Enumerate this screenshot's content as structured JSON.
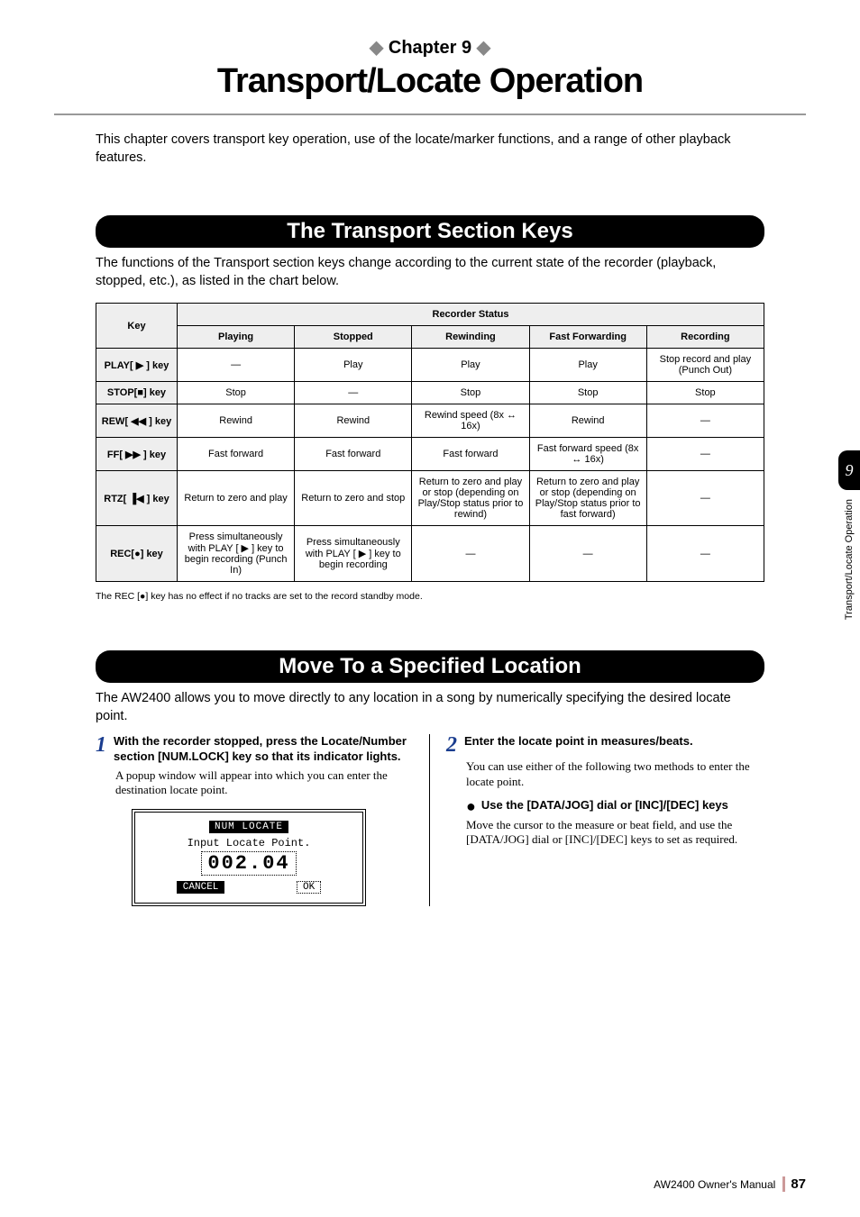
{
  "chapter": {
    "label": "Chapter 9",
    "title": "Transport/Locate Operation",
    "fontsize_small": 20,
    "fontsize_big": 38
  },
  "intro": "This chapter covers transport key operation, use of the locate/marker functions, and a range of other playback features.",
  "section1": {
    "title": "The Transport Section Keys",
    "fontsize": 24,
    "desc": "The functions of the Transport section keys change according to the current state of the recorder (playback, stopped, etc.), as listed in the chart below."
  },
  "table": {
    "group_header": "Recorder Status",
    "key_header": "Key",
    "columns": [
      "Playing",
      "Stopped",
      "Rewinding",
      "Fast Forwarding",
      "Recording"
    ],
    "rows": [
      {
        "key": "PLAY[ ▶ ] key",
        "cells": [
          "—",
          "Play",
          "Play",
          "Play",
          "Stop record and play (Punch Out)"
        ]
      },
      {
        "key": "STOP[■] key",
        "cells": [
          "Stop",
          "—",
          "Stop",
          "Stop",
          "Stop"
        ]
      },
      {
        "key": "REW[ ◀◀ ] key",
        "cells": [
          "Rewind",
          "Rewind",
          "Rewind speed\n(8x ↔ 16x)",
          "Rewind",
          "—"
        ]
      },
      {
        "key": "FF[ ▶▶ ] key",
        "cells": [
          "Fast forward",
          "Fast forward",
          "Fast forward",
          "Fast forward speed\n(8x ↔ 16x)",
          "—"
        ]
      },
      {
        "key": "RTZ[ ▐◀ ] key",
        "cells": [
          "Return to zero and play",
          "Return to zero and stop",
          "Return to zero and play or stop (depending on Play/Stop status prior to rewind)",
          "Return to zero and play or stop (depending on Play/Stop status prior to fast forward)",
          "—"
        ]
      },
      {
        "key": "REC[●] key",
        "cells": [
          "Press simultaneously with PLAY [ ▶ ] key to begin recording (Punch In)",
          "Press simultaneously with PLAY [ ▶ ] key to begin recording",
          "—",
          "—",
          "—"
        ]
      }
    ],
    "note": "The REC [●] key has no effect if no tracks are set to the record standby mode."
  },
  "section2": {
    "title": "Move To a Specified Location",
    "fontsize": 24,
    "desc": "The AW2400 allows you to move directly to any location in a song by numerically specifying the desired locate point."
  },
  "steps": {
    "s1": {
      "num": "1",
      "head": "With the recorder stopped, press the Locate/Number section [NUM.LOCK] key so that its indicator lights.",
      "body": "A popup window will appear into which you can enter the destination locate point."
    },
    "s2": {
      "num": "2",
      "head": "Enter the locate point in measures/beats.",
      "body": "You can use either of the following two methods to enter the locate point."
    },
    "sub": {
      "head": "Use the [DATA/JOG] dial or [INC]/[DEC] keys",
      "body": "Move the cursor to the measure or beat field, and use the [DATA/JOG] dial or [INC]/[DEC] keys to set as required."
    }
  },
  "popup": {
    "title": "NUM LOCATE",
    "line": "Input Locate Point.",
    "value": "002.04",
    "btn_cancel": "CANCEL",
    "btn_ok": "OK"
  },
  "side": {
    "num": "9",
    "label": "Transport/Locate Operation"
  },
  "footer": {
    "manual": "AW2400  Owner's Manual",
    "page": "87"
  },
  "colors": {
    "accent": "#1a3d8f",
    "pill_bg": "#000000",
    "grey": "#888888"
  },
  "fonts": {
    "body": 14,
    "intro": 14.5,
    "step_head": 13
  }
}
